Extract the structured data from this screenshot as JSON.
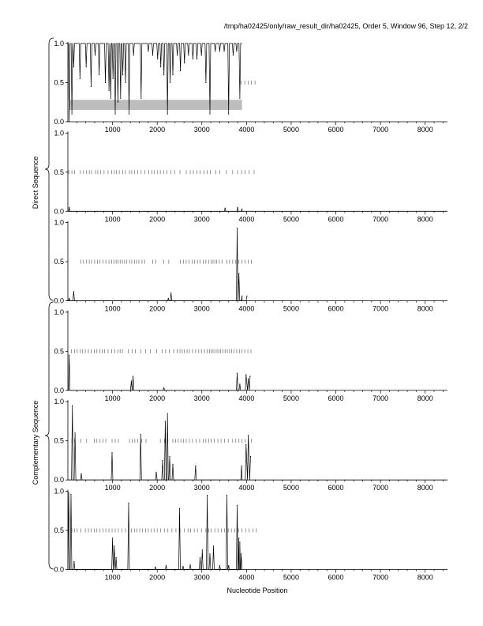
{
  "header": "/tmp/ha02425/only/raw_result_dir/ha02425, Order 5, Window 96, Step 12, 2/2",
  "x_axis_label": "Nucleotide Position",
  "group_labels": [
    "Direct Sequence",
    "Complementary Sequence"
  ],
  "chart_data": {
    "type": "line",
    "xlabel": "Nucleotide Position",
    "xlim": [
      0,
      8500
    ],
    "ylim": [
      0,
      1
    ],
    "x_ticks": [
      1000,
      2000,
      3000,
      4000,
      5000,
      6000,
      7000,
      8000
    ],
    "x_tick_labels": [
      "1000",
      "2000",
      "3000",
      "4000",
      "5000",
      "6000",
      "7000",
      "8000"
    ],
    "y_ticks": [
      0,
      0.5,
      1
    ],
    "y_tick_labels": [
      "0.0",
      "0.5",
      "1.0"
    ],
    "sequence_length": 3900,
    "panels": [
      {
        "group": "Direct Sequence",
        "baseline": 1.0,
        "shaded_band": {
          "x": [
            0,
            3900
          ],
          "y": [
            0.15,
            0.28
          ]
        },
        "peaks": [
          {
            "x": 30,
            "y": 0.0
          },
          {
            "x": 90,
            "y": 0.1
          },
          {
            "x": 130,
            "y": 0.7
          },
          {
            "x": 270,
            "y": 0.55
          },
          {
            "x": 410,
            "y": 0.7
          },
          {
            "x": 520,
            "y": 0.45
          },
          {
            "x": 610,
            "y": 0.85
          },
          {
            "x": 700,
            "y": 0.6
          },
          {
            "x": 840,
            "y": 0.5
          },
          {
            "x": 920,
            "y": 0.4
          },
          {
            "x": 960,
            "y": 0.3
          },
          {
            "x": 1010,
            "y": 0.55
          },
          {
            "x": 1060,
            "y": 0.1
          },
          {
            "x": 1120,
            "y": 0.25
          },
          {
            "x": 1180,
            "y": 0.3
          },
          {
            "x": 1230,
            "y": 0.6
          },
          {
            "x": 1290,
            "y": 0.5
          },
          {
            "x": 1370,
            "y": 0.1
          },
          {
            "x": 1470,
            "y": 0.85
          },
          {
            "x": 1640,
            "y": 0.3
          },
          {
            "x": 1800,
            "y": 0.9
          },
          {
            "x": 1900,
            "y": 0.85
          },
          {
            "x": 2010,
            "y": 0.8
          },
          {
            "x": 2080,
            "y": 0.7
          },
          {
            "x": 2150,
            "y": 0.6
          },
          {
            "x": 2230,
            "y": 0.1
          },
          {
            "x": 2290,
            "y": 0.5
          },
          {
            "x": 2350,
            "y": 0.6
          },
          {
            "x": 2450,
            "y": 0.85
          },
          {
            "x": 2520,
            "y": 0.65
          },
          {
            "x": 2610,
            "y": 0.75
          },
          {
            "x": 2700,
            "y": 0.85
          },
          {
            "x": 2800,
            "y": 0.8
          },
          {
            "x": 2890,
            "y": 0.8
          },
          {
            "x": 2990,
            "y": 0.85
          },
          {
            "x": 3090,
            "y": 0.5
          },
          {
            "x": 3180,
            "y": 0.1
          },
          {
            "x": 3300,
            "y": 0.9
          },
          {
            "x": 3400,
            "y": 0.9
          },
          {
            "x": 3500,
            "y": 0.9
          },
          {
            "x": 3600,
            "y": 0.1
          },
          {
            "x": 3700,
            "y": 0.85
          },
          {
            "x": 3780,
            "y": 0.9
          },
          {
            "x": 3850,
            "y": 0.3
          }
        ],
        "ticks_at_half": [
          3880,
          3960,
          4040,
          4110,
          4190
        ]
      },
      {
        "group": "Direct Sequence",
        "baseline": 0.0,
        "peaks": [
          {
            "x": 30,
            "y": 0.05
          },
          {
            "x": 3520,
            "y": 0.04
          },
          {
            "x": 3800,
            "y": 0.05
          },
          {
            "x": 3900,
            "y": 0.03
          }
        ],
        "ticks_at_half": [
          20,
          90,
          150,
          280,
          350,
          420,
          480,
          530,
          620,
          670,
          730,
          810,
          900,
          980,
          1040,
          1090,
          1150,
          1230,
          1290,
          1380,
          1430,
          1490,
          1560,
          1640,
          1720,
          1810,
          1880,
          1940,
          2010,
          2070,
          2150,
          2220,
          2310,
          2390,
          2510,
          2650,
          2740,
          2810,
          2890,
          2960,
          3050,
          3120,
          3190,
          3310,
          3400,
          3550,
          3690,
          3800,
          3890,
          3970,
          4060,
          4170
        ]
      },
      {
        "group": "Direct Sequence",
        "baseline": 0.0,
        "peaks": [
          {
            "x": 30,
            "y": 0.03
          },
          {
            "x": 130,
            "y": 0.12
          },
          {
            "x": 2310,
            "y": 0.1
          },
          {
            "x": 2250,
            "y": 0.03
          },
          {
            "x": 3790,
            "y": 0.93
          },
          {
            "x": 3830,
            "y": 0.35
          },
          {
            "x": 3900,
            "y": 0.06
          },
          {
            "x": 4010,
            "y": 0.06
          }
        ],
        "ticks_at_half": [
          290,
          350,
          420,
          480,
          530,
          600,
          660,
          720,
          790,
          850,
          920,
          980,
          1030,
          1080,
          1120,
          1170,
          1220,
          1270,
          1320,
          1380,
          1430,
          1490,
          1540,
          1590,
          1660,
          1720,
          1900,
          1970,
          2150,
          2260,
          2520,
          2590,
          2650,
          2710,
          2780,
          2840,
          2900,
          2960,
          3030,
          3090,
          3150,
          3210,
          3250,
          3290,
          3330,
          3390,
          3450,
          3560,
          3620,
          3690,
          3760,
          3830,
          3900,
          3970,
          4040,
          4110
        ]
      },
      {
        "group": "Complementary Sequence",
        "baseline": 0.0,
        "peaks": [
          {
            "x": 30,
            "y": 0.45
          },
          {
            "x": 1420,
            "y": 0.12
          },
          {
            "x": 1460,
            "y": 0.18
          },
          {
            "x": 2150,
            "y": 0.03
          },
          {
            "x": 3790,
            "y": 0.22
          },
          {
            "x": 3850,
            "y": 0.08
          },
          {
            "x": 3990,
            "y": 0.2
          },
          {
            "x": 4040,
            "y": 0.15
          },
          {
            "x": 4080,
            "y": 0.18
          }
        ],
        "ticks_at_half": [
          80,
          150,
          210,
          280,
          330,
          390,
          460,
          520,
          590,
          650,
          720,
          770,
          820,
          900,
          980,
          1050,
          1120,
          1170,
          1220,
          1350,
          1440,
          1510,
          1630,
          1740,
          1850,
          1990,
          2110,
          2190,
          2270,
          2370,
          2450,
          2510,
          2560,
          2610,
          2670,
          2720,
          2790,
          2860,
          2930,
          2990,
          3060,
          3120,
          3170,
          3210,
          3250,
          3290,
          3340,
          3380,
          3420,
          3470,
          3520,
          3570,
          3620,
          3670,
          3720,
          3780,
          3840,
          3900,
          3960,
          4030,
          4100
        ]
      },
      {
        "group": "Complementary Sequence",
        "baseline": 0.0,
        "peaks": [
          {
            "x": 100,
            "y": 0.95
          },
          {
            "x": 160,
            "y": 0.6
          },
          {
            "x": 300,
            "y": 0.08
          },
          {
            "x": 990,
            "y": 0.35
          },
          {
            "x": 1630,
            "y": 0.58
          },
          {
            "x": 1980,
            "y": 0.1
          },
          {
            "x": 2120,
            "y": 0.25
          },
          {
            "x": 2180,
            "y": 0.75
          },
          {
            "x": 2230,
            "y": 0.85
          },
          {
            "x": 2280,
            "y": 0.3
          },
          {
            "x": 2350,
            "y": 0.2
          },
          {
            "x": 2860,
            "y": 0.18
          },
          {
            "x": 3890,
            "y": 0.18
          },
          {
            "x": 3990,
            "y": 0.45
          },
          {
            "x": 4040,
            "y": 0.57
          },
          {
            "x": 4090,
            "y": 0.3
          }
        ],
        "ticks_at_half": [
          90,
          150,
          290,
          420,
          590,
          650,
          720,
          790,
          850,
          990,
          1060,
          1130,
          1380,
          1440,
          1500,
          1560,
          1650,
          1750,
          2070,
          2160,
          2240,
          2350,
          2410,
          2470,
          2530,
          2590,
          2650,
          2720,
          2790,
          2870,
          2950,
          3030,
          3090,
          3150,
          3210,
          3280,
          3360,
          3430,
          3510,
          3590,
          3690,
          3760,
          3830,
          3900,
          3970,
          4040,
          4110
        ]
      },
      {
        "group": "Complementary Sequence",
        "baseline": 0.0,
        "peaks": [
          {
            "x": 20,
            "y": 0.98
          },
          {
            "x": 70,
            "y": 0.96
          },
          {
            "x": 140,
            "y": 0.1
          },
          {
            "x": 1000,
            "y": 0.4
          },
          {
            "x": 1040,
            "y": 0.3
          },
          {
            "x": 1080,
            "y": 0.15
          },
          {
            "x": 1360,
            "y": 0.85
          },
          {
            "x": 1960,
            "y": 0.03
          },
          {
            "x": 2200,
            "y": 0.05
          },
          {
            "x": 2500,
            "y": 0.78
          },
          {
            "x": 2580,
            "y": 0.04
          },
          {
            "x": 2740,
            "y": 0.06
          },
          {
            "x": 2960,
            "y": 0.15
          },
          {
            "x": 3010,
            "y": 0.25
          },
          {
            "x": 3120,
            "y": 0.95
          },
          {
            "x": 3180,
            "y": 0.2
          },
          {
            "x": 3260,
            "y": 0.3
          },
          {
            "x": 3400,
            "y": 0.05
          },
          {
            "x": 3560,
            "y": 0.95
          },
          {
            "x": 3600,
            "y": 0.05
          },
          {
            "x": 3790,
            "y": 0.82
          },
          {
            "x": 3830,
            "y": 0.4
          },
          {
            "x": 3850,
            "y": 0.35
          },
          {
            "x": 3880,
            "y": 0.2
          }
        ],
        "ticks_at_half": [
          90,
          150,
          210,
          290,
          390,
          460,
          520,
          590,
          650,
          720,
          790,
          850,
          920,
          990,
          1060,
          1130,
          1210,
          1290,
          1420,
          1490,
          1550,
          1610,
          1670,
          1740,
          1800,
          1870,
          1930,
          2000,
          2080,
          2160,
          2240,
          2330,
          2420,
          2510,
          2610,
          2690,
          2750,
          2830,
          2900,
          2990,
          3090,
          3150,
          3210,
          3290,
          3360,
          3440,
          3510,
          3590,
          3660,
          3740,
          3820,
          3900,
          3980,
          4060,
          4140,
          4220
        ]
      }
    ]
  }
}
